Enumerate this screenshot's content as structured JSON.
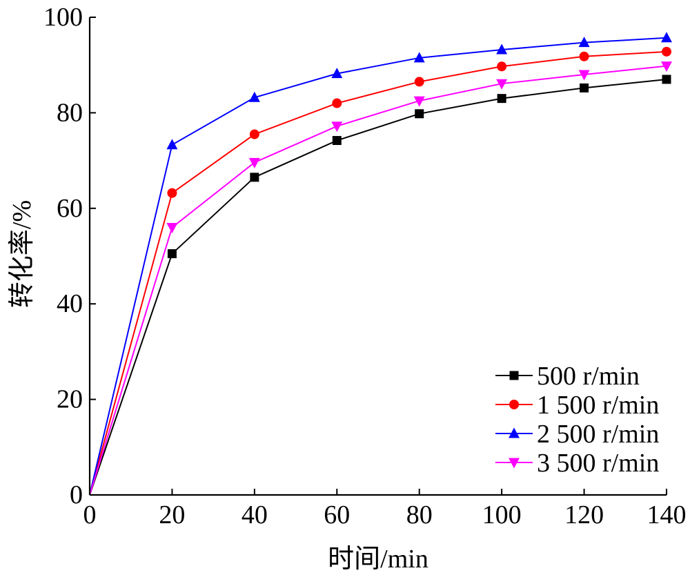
{
  "chart_data": {
    "type": "line",
    "title": "",
    "xlabel": "时间/min",
    "ylabel": "转化率/%",
    "xlim": [
      0,
      140
    ],
    "ylim": [
      0,
      100
    ],
    "x_ticks": [
      0,
      20,
      40,
      60,
      80,
      100,
      120,
      140
    ],
    "y_ticks": [
      0,
      20,
      40,
      60,
      80,
      100
    ],
    "grid": false,
    "legend_position": "bottom-right",
    "x": [
      0,
      20,
      40,
      60,
      80,
      100,
      120,
      140
    ],
    "series": [
      {
        "name": "500 r/min",
        "color": "#000000",
        "marker": "square",
        "values": [
          0,
          50.5,
          66.5,
          74.2,
          79.8,
          83.0,
          85.2,
          87.0
        ]
      },
      {
        "name": "1 500 r/min",
        "color": "#ff0000",
        "marker": "circle",
        "values": [
          0,
          63.2,
          75.5,
          82.0,
          86.5,
          89.7,
          91.8,
          92.8
        ]
      },
      {
        "name": "2 500 r/min",
        "color": "#0000ff",
        "marker": "triangle-up",
        "values": [
          0,
          73.3,
          83.2,
          88.2,
          91.5,
          93.2,
          94.7,
          95.7
        ]
      },
      {
        "name": "3 500 r/min",
        "color": "#ff00ff",
        "marker": "triangle-down",
        "values": [
          0,
          56.0,
          69.6,
          77.2,
          82.5,
          86.1,
          88.0,
          89.8
        ]
      }
    ]
  }
}
